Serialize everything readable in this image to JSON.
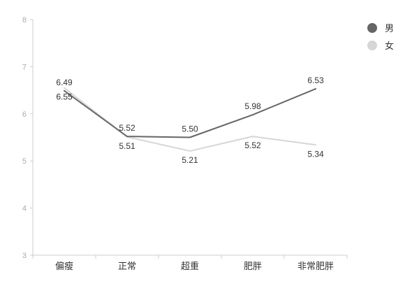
{
  "chart_data": {
    "type": "line",
    "categories": [
      "偏瘦",
      "正常",
      "超重",
      "肥胖",
      "非常肥胖"
    ],
    "series": [
      {
        "name": "男",
        "values": [
          6.49,
          5.52,
          5.5,
          5.98,
          6.53
        ],
        "color": "#666666"
      },
      {
        "name": "女",
        "values": [
          6.55,
          5.51,
          5.21,
          5.52,
          5.34
        ],
        "color": "#d6d6d6"
      }
    ],
    "ylim": [
      3,
      8
    ],
    "yticks": [
      3,
      4,
      5,
      6,
      7,
      8
    ],
    "grid": false,
    "legend": "top-right",
    "title": "",
    "xlabel": "",
    "ylabel": ""
  }
}
